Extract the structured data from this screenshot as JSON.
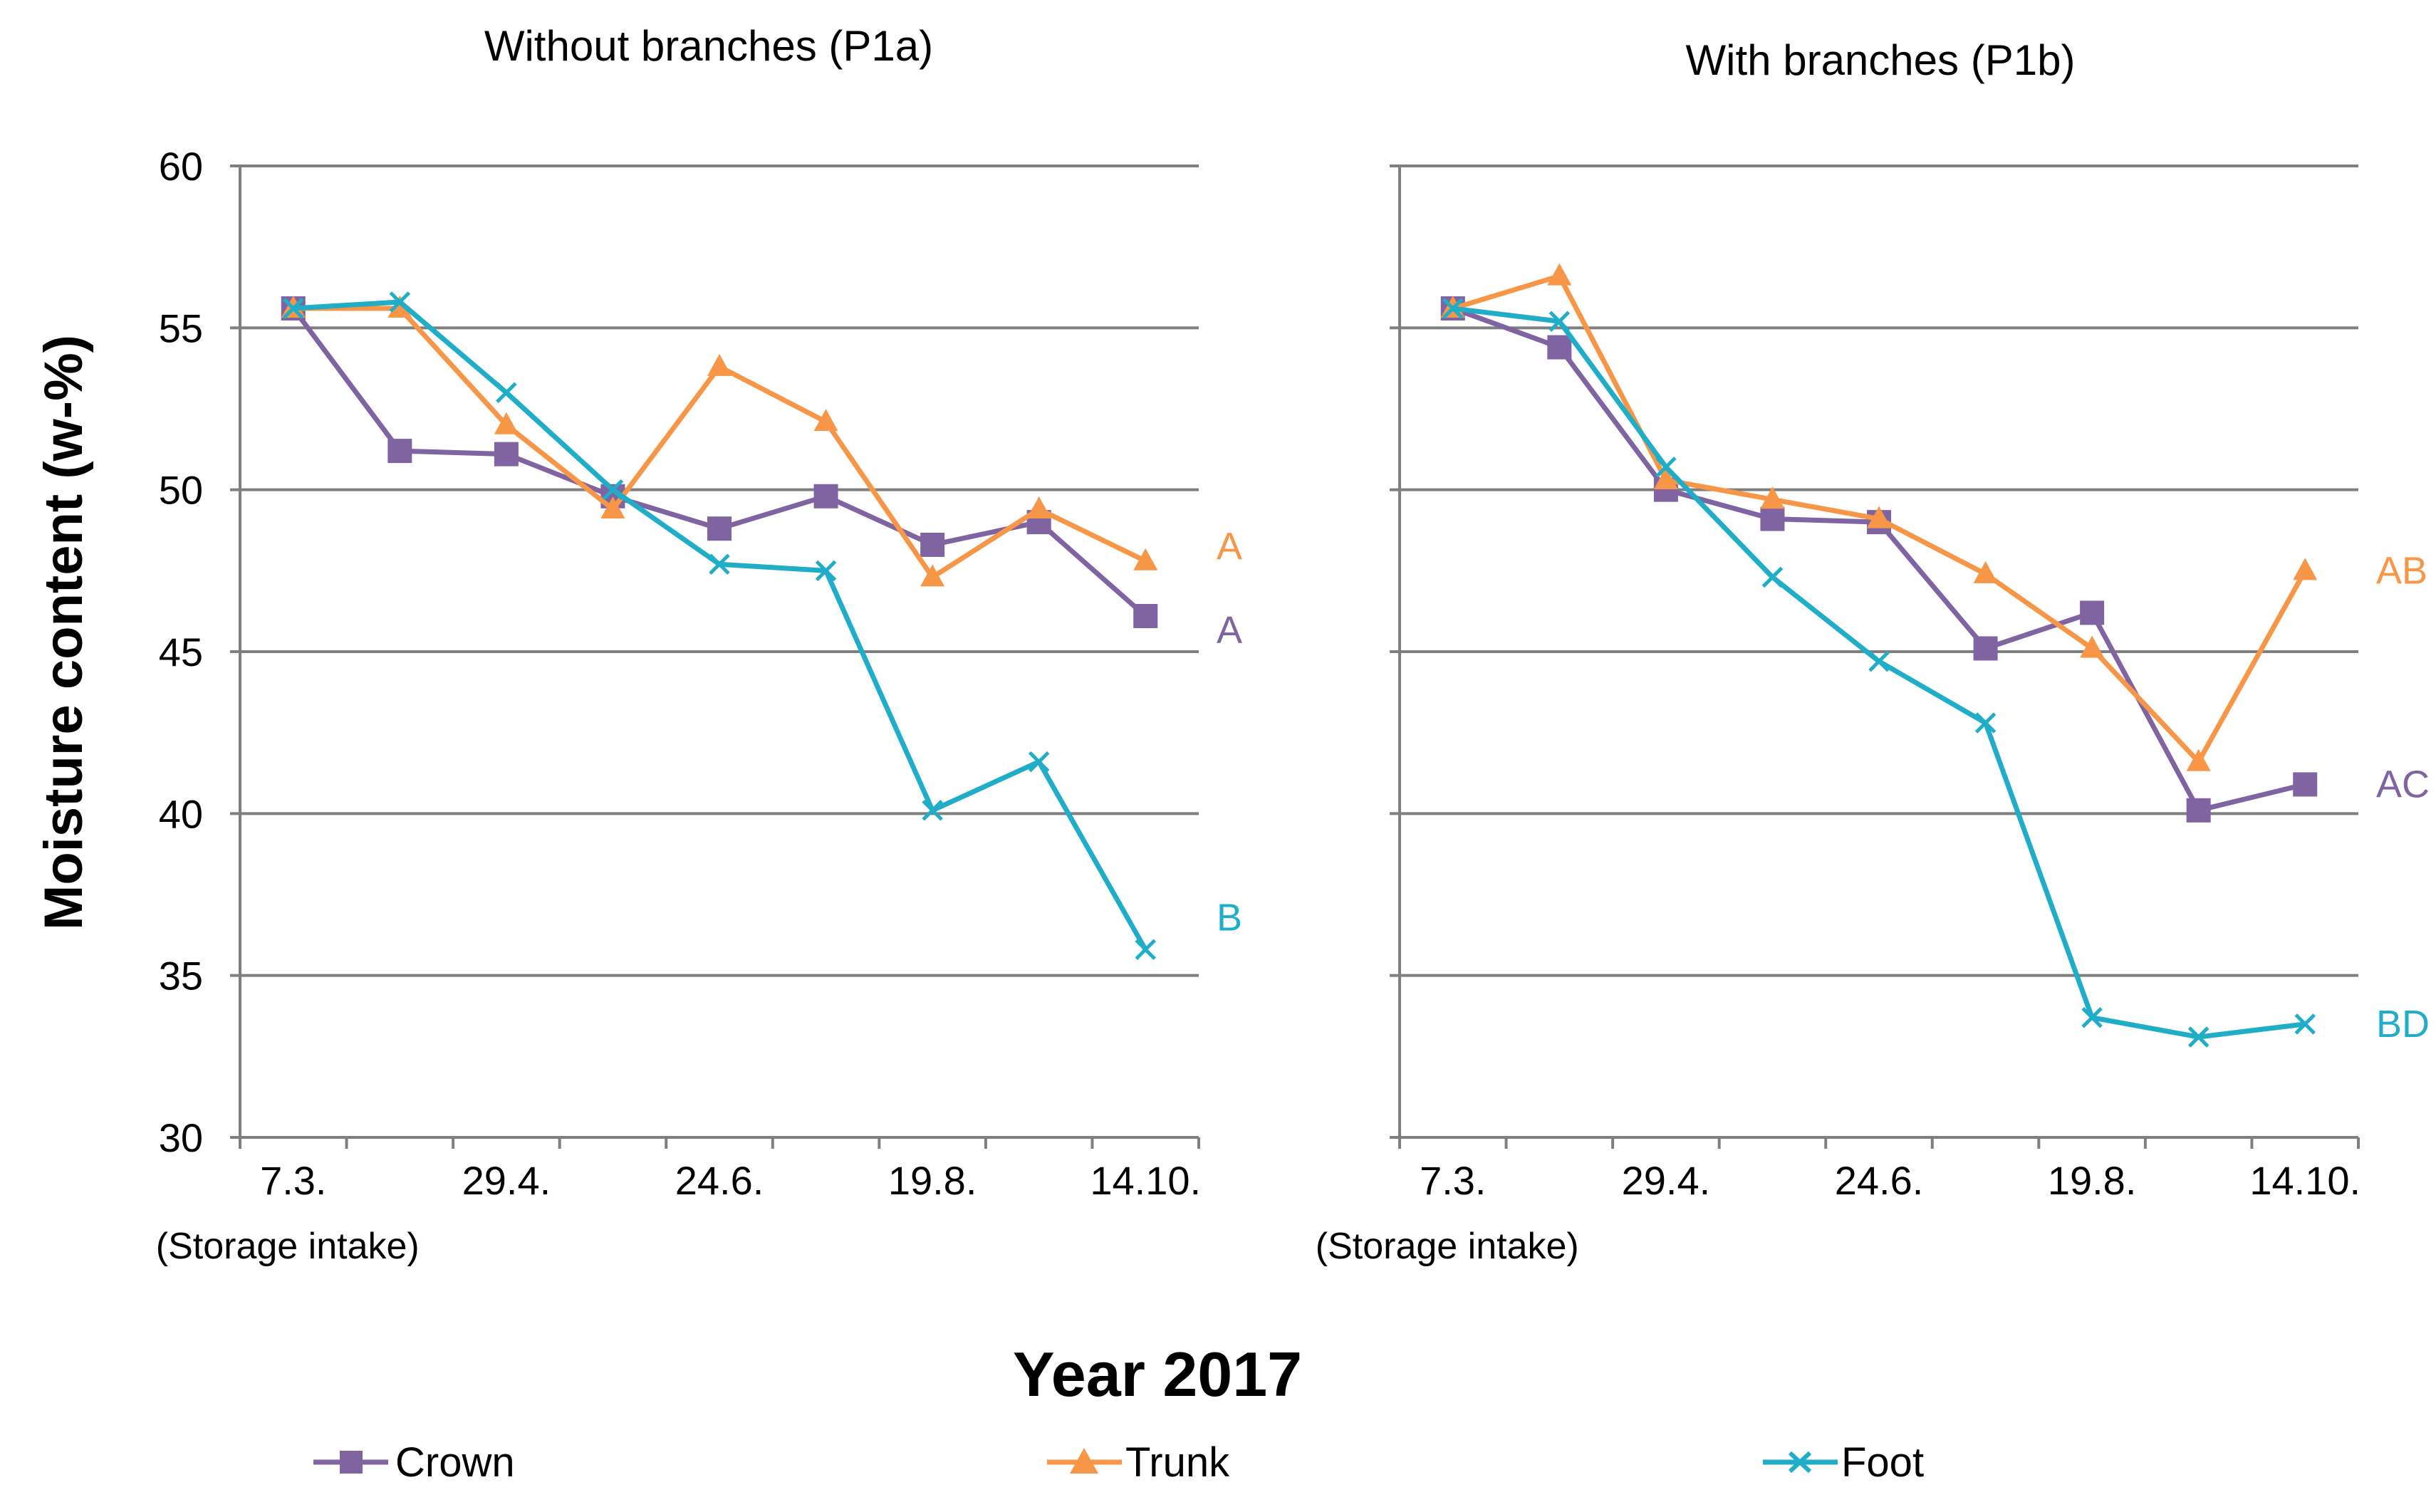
{
  "chart_data": {
    "type": "line",
    "xlabel": "Year 2017",
    "ylabel": "Moisture content (w-%)",
    "ylim": [
      30,
      60
    ],
    "yticks": [
      30,
      35,
      40,
      45,
      50,
      55,
      60
    ],
    "x_tick_labels": [
      "7.3.",
      "29.4.",
      "24.6.",
      "19.8.",
      "14.10."
    ],
    "x_sublabel": "(Storage intake)",
    "series_styles": [
      {
        "name": "Crown",
        "color": "#8064a2",
        "marker": "square"
      },
      {
        "name": "Trunk",
        "color": "#f79646",
        "marker": "triangle"
      },
      {
        "name": "Foot",
        "color": "#1fadc8",
        "marker": "x"
      }
    ],
    "panels": [
      {
        "title": "Without branches (P1a)",
        "series": [
          {
            "name": "Crown",
            "values": [
              55.6,
              51.2,
              51.1,
              49.8,
              48.8,
              49.8,
              48.3,
              49.0,
              46.1
            ]
          },
          {
            "name": "Trunk",
            "values": [
              55.6,
              55.6,
              52.0,
              49.4,
              53.8,
              52.1,
              47.3,
              49.4,
              47.8
            ]
          },
          {
            "name": "Foot",
            "values": [
              55.6,
              55.8,
              53.0,
              50.0,
              47.7,
              47.5,
              40.1,
              41.6,
              35.8
            ]
          }
        ],
        "annotations": [
          {
            "text": "A",
            "series": "Trunk"
          },
          {
            "text": "A",
            "series": "Crown"
          },
          {
            "text": "B",
            "series": "Foot"
          }
        ]
      },
      {
        "title": "With branches (P1b)",
        "series": [
          {
            "name": "Crown",
            "values": [
              55.6,
              54.4,
              50.0,
              49.1,
              49.0,
              45.1,
              46.2,
              40.1,
              40.9
            ]
          },
          {
            "name": "Trunk",
            "values": [
              55.6,
              56.6,
              50.3,
              49.7,
              49.1,
              47.4,
              45.1,
              41.6,
              47.5
            ]
          },
          {
            "name": "Foot",
            "values": [
              55.6,
              55.2,
              50.7,
              47.3,
              44.7,
              42.8,
              33.7,
              33.1,
              33.5
            ]
          }
        ],
        "annotations": [
          {
            "text": "AB",
            "series": "Trunk"
          },
          {
            "text": "AC",
            "series": "Crown"
          },
          {
            "text": "BD",
            "series": "Foot"
          }
        ]
      }
    ]
  }
}
